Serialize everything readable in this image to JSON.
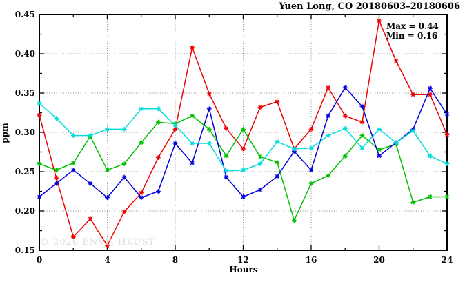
{
  "title": "Yuen Long, CO 20180603–20180606",
  "annotation": {
    "max_label": "Max = 0.44",
    "min_label": "Min = 0.16"
  },
  "watermark": "© 2026 ENVF, HKUST",
  "chart_data": {
    "type": "line",
    "title": "Yuen Long, CO 20180603–20180606",
    "xlabel": "Hours",
    "ylabel": "ppm",
    "xlim": [
      0,
      24
    ],
    "ylim": [
      0.15,
      0.45
    ],
    "x_ticks_major": [
      0,
      4,
      8,
      12,
      16,
      20,
      24
    ],
    "x_minor_step": 2,
    "y_ticks_major": [
      0.15,
      0.2,
      0.25,
      0.3,
      0.35,
      0.4,
      0.45
    ],
    "y_minor_step": 0.025,
    "grid": "dotted",
    "grid_x": [
      4,
      8,
      12,
      16,
      20
    ],
    "grid_y": [
      0.2,
      0.25,
      0.3,
      0.35,
      0.4
    ],
    "legend": "none",
    "marker": "asterisk",
    "x": [
      0,
      1,
      2,
      3,
      4,
      5,
      6,
      7,
      8,
      9,
      10,
      11,
      12,
      13,
      14,
      15,
      16,
      17,
      18,
      19,
      20,
      21,
      22,
      23,
      24
    ],
    "series": [
      {
        "name": "red",
        "color": "#ee0000",
        "values": [
          0.322,
          0.242,
          0.167,
          0.19,
          0.156,
          0.199,
          0.223,
          0.268,
          0.304,
          0.408,
          0.349,
          0.305,
          0.279,
          0.332,
          0.339,
          0.279,
          0.304,
          0.357,
          0.321,
          0.313,
          0.442,
          0.391,
          0.348,
          0.348,
          0.297
        ]
      },
      {
        "name": "green",
        "color": "#00c000",
        "values": [
          0.26,
          0.252,
          0.261,
          0.295,
          0.252,
          0.26,
          0.287,
          0.313,
          0.311,
          0.321,
          0.304,
          0.27,
          0.304,
          0.269,
          0.262,
          0.188,
          0.235,
          0.245,
          0.27,
          0.296,
          0.278,
          0.285,
          0.211,
          0.218,
          0.218
        ]
      },
      {
        "name": "blue",
        "color": "#0000dd",
        "values": [
          0.218,
          0.235,
          0.252,
          0.235,
          0.217,
          0.243,
          0.217,
          0.225,
          0.286,
          0.261,
          0.33,
          0.243,
          0.218,
          0.227,
          0.244,
          0.276,
          0.252,
          0.321,
          0.357,
          0.333,
          0.27,
          0.287,
          0.304,
          0.356,
          0.323
        ]
      },
      {
        "name": "cyan",
        "color": "#00dddd",
        "values": [
          0.337,
          0.318,
          0.296,
          0.296,
          0.304,
          0.304,
          0.33,
          0.33,
          0.309,
          0.286,
          0.286,
          0.251,
          0.252,
          0.26,
          0.288,
          0.279,
          0.28,
          0.296,
          0.305,
          0.28,
          0.304,
          0.287,
          0.302,
          0.27,
          0.26
        ]
      }
    ],
    "stats": {
      "max": 0.44,
      "min": 0.16
    }
  }
}
